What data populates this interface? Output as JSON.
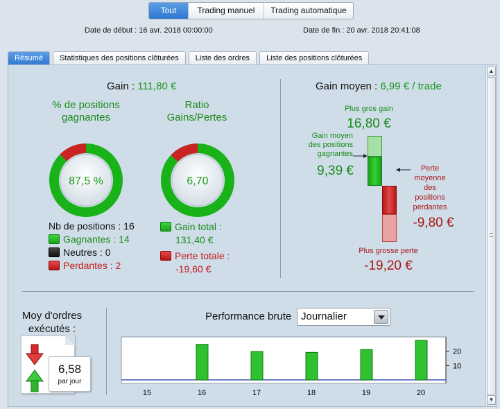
{
  "top_tabs": [
    {
      "label": "Tout",
      "active": true
    },
    {
      "label": "Trading manuel",
      "active": false
    },
    {
      "label": "Trading automatique",
      "active": false
    }
  ],
  "dates": {
    "start": "Date de début : 16 avr. 2018 00:00:00",
    "end": "Date de fin : 20 avr. 2018 20:41:08"
  },
  "tabs": [
    {
      "label": "Résumé",
      "active": true
    },
    {
      "label": "Statistiques des positions clôturées",
      "active": false
    },
    {
      "label": "Liste des ordres",
      "active": false
    },
    {
      "label": "Liste des positions clôturées",
      "active": false
    }
  ],
  "summary": {
    "gain_label": "Gain :",
    "gain_value": "111,80 €",
    "win_pct": {
      "title": "% de positions gagnantes",
      "value": "87,5 %",
      "fraction": 0.875
    },
    "ratio": {
      "title": "Ratio Gains/Pertes",
      "value": "6,70",
      "fraction": 0.87
    },
    "positions": {
      "total": "Nb de positions : 16",
      "winning": "Gagnantes : 14",
      "neutral": "Neutres : 0",
      "losing": "Perdantes : 2"
    },
    "totals": {
      "gain_total_label": "Gain total :",
      "gain_total_value": "131,40 €",
      "loss_total_label": "Perte totale :",
      "loss_total_value": "-19,60 €"
    }
  },
  "average": {
    "label": "Gain moyen :",
    "value": "6,99 € / trade",
    "biggest_gain_label": "Plus gros gain",
    "biggest_gain_value": "16,80 €",
    "avg_win_label": "Gain moyen des positions gagnantes",
    "avg_win_value": "9,39 €",
    "avg_loss_label": "Perte moyenne des positions perdantes",
    "avg_loss_value": "-9,80 €",
    "biggest_loss_label": "Plus grosse perte",
    "biggest_loss_value": "-19,20 €"
  },
  "orders": {
    "title": "Moy d'ordres exécutés :",
    "value": "6,58",
    "unit": "par jour"
  },
  "performance": {
    "title": "Performance brute",
    "period": "Journalier"
  },
  "colors": {
    "green": "#1b9a1b",
    "red": "#c21b1b",
    "accent": "#2f77d0"
  },
  "chart_data": {
    "type": "bar",
    "categories": [
      "15",
      "16",
      "17",
      "18",
      "19",
      "20"
    ],
    "values": [
      0,
      24.8,
      19.8,
      19.2,
      21.2,
      27.6
    ],
    "y_ticks": [
      "20",
      "10"
    ],
    "ylim": [
      0,
      30
    ],
    "grid": false
  }
}
